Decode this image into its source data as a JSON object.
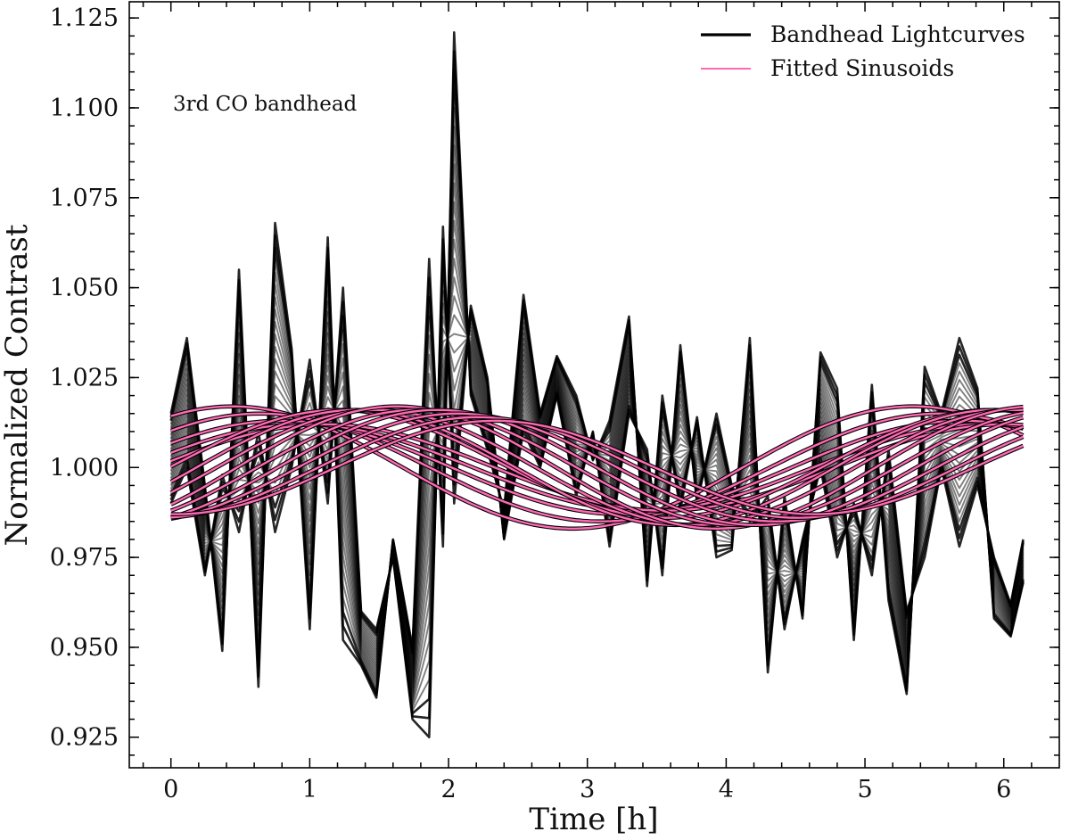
{
  "chart_data": {
    "type": "line",
    "title": "",
    "xlabel": "Time [h]",
    "ylabel": "Normalized Contrast",
    "xlim": [
      -0.3,
      6.4
    ],
    "ylim": [
      0.9165,
      1.1295
    ],
    "x_ticks": [
      0,
      1,
      2,
      3,
      4,
      5,
      6
    ],
    "x_tick_labels": [
      "0",
      "1",
      "2",
      "3",
      "4",
      "5",
      "6"
    ],
    "y_ticks": [
      0.925,
      0.95,
      0.975,
      1.0,
      1.025,
      1.05,
      1.075,
      1.1,
      1.125
    ],
    "y_tick_labels": [
      "0.925",
      "0.950",
      "0.975",
      "1.000",
      "1.025",
      "1.050",
      "1.075",
      "1.100",
      "1.125"
    ],
    "annotation": "3rd CO bandhead",
    "legend": {
      "position": "top-right",
      "entries": [
        {
          "label": "Bandhead Lightcurves",
          "color": "#000000"
        },
        {
          "label": "Fitted Sinusoids",
          "color": "#ff69b4"
        }
      ]
    },
    "colors": {
      "lightcurve": "#000000",
      "sinusoid": "#ff69b4",
      "sinusoid_edge": "#000000"
    },
    "lightcurve_x": [
      0,
      0.115,
      0.245,
      0.37,
      0.49,
      0.63,
      0.75,
      0.87,
      1.0,
      1.13,
      1.24,
      1.37,
      1.48,
      1.6,
      1.74,
      1.86,
      1.96,
      2.04,
      2.16,
      2.28,
      2.4,
      2.54,
      2.66,
      2.78,
      2.92,
      3.04,
      3.16,
      3.3,
      3.43,
      3.54,
      3.67,
      3.79,
      3.93,
      4.04,
      4.17,
      4.3,
      4.42,
      4.55,
      4.68,
      4.8,
      4.92,
      5.05,
      5.17,
      5.3,
      5.43,
      5.55,
      5.68,
      5.81,
      5.93,
      6.05,
      6.14
    ],
    "lightcurve_envelope_a": [
      1.015,
      1.036,
      0.995,
      0.949,
      1.055,
      0.939,
      1.068,
      1.033,
      0.955,
      1.064,
      0.952,
      0.945,
      0.936,
      0.98,
      0.95,
      1.058,
      0.978,
      1.121,
      1.02,
      1.005,
      0.988,
      1.048,
      1.015,
      1.031,
      1.02,
      1.002,
      1.013,
      1.042,
      0.967,
      1.02,
      0.988,
      1.014,
      0.975,
      0.977,
      1.036,
      0.943,
      0.992,
      0.958,
      1.032,
      1.022,
      0.952,
      1.023,
      0.963,
      0.937,
      1.028,
      1.015,
      1.036,
      1.022,
      0.958,
      0.953,
      0.968
    ],
    "lightcurve_envelope_b": [
      0.99,
      1.0,
      0.97,
      0.998,
      0.982,
      1.01,
      0.982,
      1.0,
      1.03,
      0.99,
      1.05,
      0.96,
      0.955,
      0.975,
      0.93,
      0.925,
      1.067,
      0.99,
      1.045,
      1.025,
      0.98,
      1.01,
      1.0,
      1.02,
      0.992,
      1.01,
      0.978,
      1.015,
      1.005,
      0.97,
      1.034,
      0.99,
      1.015,
      0.995,
      0.985,
      0.992,
      0.955,
      0.98,
      1.0,
      0.975,
      0.99,
      0.97,
      1.005,
      0.96,
      0.975,
      1.0,
      0.978,
      0.995,
      0.975,
      0.962,
      0.98
    ],
    "lightcurve_count": 26,
    "sinusoid_count": 14,
    "sinusoid_x_range": [
      0,
      6.14
    ],
    "sinusoid_params": [
      {
        "offset": 1.0,
        "amplitude": 0.017,
        "period": 4.9,
        "phase_at_t0": 1.0,
        "slope": 0.0
      },
      {
        "offset": 1.0,
        "amplitude": 0.015,
        "period": 4.9,
        "phase_at_t0": 0.75,
        "slope": 0.0
      },
      {
        "offset": 1.0,
        "amplitude": 0.013,
        "period": 4.9,
        "phase_at_t0": 0.55,
        "slope": 0.0
      },
      {
        "offset": 1.0,
        "amplitude": 0.012,
        "period": 4.9,
        "phase_at_t0": 0.35,
        "slope": 0.0
      },
      {
        "offset": 1.0,
        "amplitude": 0.012,
        "period": 4.9,
        "phase_at_t0": 0.15,
        "slope": 0.0
      },
      {
        "offset": 1.001,
        "amplitude": 0.015,
        "period": 4.7,
        "phase_at_t0": -0.05,
        "slope": 0.0
      },
      {
        "offset": 1.0,
        "amplitude": 0.016,
        "period": 4.6,
        "phase_at_t0": -0.25,
        "slope": 0.0
      },
      {
        "offset": 1.0,
        "amplitude": 0.016,
        "period": 4.6,
        "phase_at_t0": -0.45,
        "slope": 0.0
      },
      {
        "offset": 1.0,
        "amplitude": 0.017,
        "period": 4.6,
        "phase_at_t0": -0.65,
        "slope": 0.0
      },
      {
        "offset": 1.0,
        "amplitude": 0.016,
        "period": 4.6,
        "phase_at_t0": -0.85,
        "slope": 0.0
      },
      {
        "offset": 1.0,
        "amplitude": 0.016,
        "period": 4.6,
        "phase_at_t0": -1.05,
        "slope": 0.0
      },
      {
        "offset": 1.0,
        "amplitude": 0.015,
        "period": 4.6,
        "phase_at_t0": -1.25,
        "slope": 0.0
      },
      {
        "offset": 1.0,
        "amplitude": 0.014,
        "period": 4.6,
        "phase_at_t0": -1.45,
        "slope": 0.0
      },
      {
        "offset": 1.0,
        "amplitude": 0.013,
        "period": 4.6,
        "phase_at_t0": -1.62,
        "slope": 0.0
      }
    ]
  }
}
